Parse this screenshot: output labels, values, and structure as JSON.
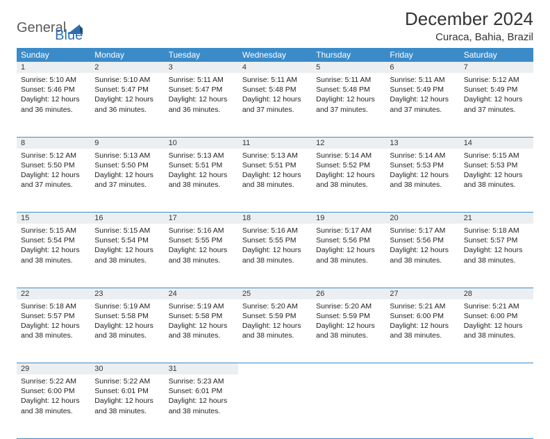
{
  "logo": {
    "part1": "General",
    "part2": "Blue"
  },
  "title": "December 2024",
  "location": "Curaca, Bahia, Brazil",
  "weekday_header_bg": "#3b8bc9",
  "daynum_bg": "#eceff1",
  "border_color": "#3b8bc9",
  "weekdays": [
    "Sunday",
    "Monday",
    "Tuesday",
    "Wednesday",
    "Thursday",
    "Friday",
    "Saturday"
  ],
  "weeks": [
    [
      {
        "n": "1",
        "sr": "5:10 AM",
        "ss": "5:46 PM",
        "dl": "12 hours and 36 minutes."
      },
      {
        "n": "2",
        "sr": "5:10 AM",
        "ss": "5:47 PM",
        "dl": "12 hours and 36 minutes."
      },
      {
        "n": "3",
        "sr": "5:11 AM",
        "ss": "5:47 PM",
        "dl": "12 hours and 36 minutes."
      },
      {
        "n": "4",
        "sr": "5:11 AM",
        "ss": "5:48 PM",
        "dl": "12 hours and 37 minutes."
      },
      {
        "n": "5",
        "sr": "5:11 AM",
        "ss": "5:48 PM",
        "dl": "12 hours and 37 minutes."
      },
      {
        "n": "6",
        "sr": "5:11 AM",
        "ss": "5:49 PM",
        "dl": "12 hours and 37 minutes."
      },
      {
        "n": "7",
        "sr": "5:12 AM",
        "ss": "5:49 PM",
        "dl": "12 hours and 37 minutes."
      }
    ],
    [
      {
        "n": "8",
        "sr": "5:12 AM",
        "ss": "5:50 PM",
        "dl": "12 hours and 37 minutes."
      },
      {
        "n": "9",
        "sr": "5:13 AM",
        "ss": "5:50 PM",
        "dl": "12 hours and 37 minutes."
      },
      {
        "n": "10",
        "sr": "5:13 AM",
        "ss": "5:51 PM",
        "dl": "12 hours and 38 minutes."
      },
      {
        "n": "11",
        "sr": "5:13 AM",
        "ss": "5:51 PM",
        "dl": "12 hours and 38 minutes."
      },
      {
        "n": "12",
        "sr": "5:14 AM",
        "ss": "5:52 PM",
        "dl": "12 hours and 38 minutes."
      },
      {
        "n": "13",
        "sr": "5:14 AM",
        "ss": "5:53 PM",
        "dl": "12 hours and 38 minutes."
      },
      {
        "n": "14",
        "sr": "5:15 AM",
        "ss": "5:53 PM",
        "dl": "12 hours and 38 minutes."
      }
    ],
    [
      {
        "n": "15",
        "sr": "5:15 AM",
        "ss": "5:54 PM",
        "dl": "12 hours and 38 minutes."
      },
      {
        "n": "16",
        "sr": "5:15 AM",
        "ss": "5:54 PM",
        "dl": "12 hours and 38 minutes."
      },
      {
        "n": "17",
        "sr": "5:16 AM",
        "ss": "5:55 PM",
        "dl": "12 hours and 38 minutes."
      },
      {
        "n": "18",
        "sr": "5:16 AM",
        "ss": "5:55 PM",
        "dl": "12 hours and 38 minutes."
      },
      {
        "n": "19",
        "sr": "5:17 AM",
        "ss": "5:56 PM",
        "dl": "12 hours and 38 minutes."
      },
      {
        "n": "20",
        "sr": "5:17 AM",
        "ss": "5:56 PM",
        "dl": "12 hours and 38 minutes."
      },
      {
        "n": "21",
        "sr": "5:18 AM",
        "ss": "5:57 PM",
        "dl": "12 hours and 38 minutes."
      }
    ],
    [
      {
        "n": "22",
        "sr": "5:18 AM",
        "ss": "5:57 PM",
        "dl": "12 hours and 38 minutes."
      },
      {
        "n": "23",
        "sr": "5:19 AM",
        "ss": "5:58 PM",
        "dl": "12 hours and 38 minutes."
      },
      {
        "n": "24",
        "sr": "5:19 AM",
        "ss": "5:58 PM",
        "dl": "12 hours and 38 minutes."
      },
      {
        "n": "25",
        "sr": "5:20 AM",
        "ss": "5:59 PM",
        "dl": "12 hours and 38 minutes."
      },
      {
        "n": "26",
        "sr": "5:20 AM",
        "ss": "5:59 PM",
        "dl": "12 hours and 38 minutes."
      },
      {
        "n": "27",
        "sr": "5:21 AM",
        "ss": "6:00 PM",
        "dl": "12 hours and 38 minutes."
      },
      {
        "n": "28",
        "sr": "5:21 AM",
        "ss": "6:00 PM",
        "dl": "12 hours and 38 minutes."
      }
    ],
    [
      {
        "n": "29",
        "sr": "5:22 AM",
        "ss": "6:00 PM",
        "dl": "12 hours and 38 minutes."
      },
      {
        "n": "30",
        "sr": "5:22 AM",
        "ss": "6:01 PM",
        "dl": "12 hours and 38 minutes."
      },
      {
        "n": "31",
        "sr": "5:23 AM",
        "ss": "6:01 PM",
        "dl": "12 hours and 38 minutes."
      },
      null,
      null,
      null,
      null
    ]
  ],
  "labels": {
    "sunrise": "Sunrise:",
    "sunset": "Sunset:",
    "daylight": "Daylight:"
  }
}
